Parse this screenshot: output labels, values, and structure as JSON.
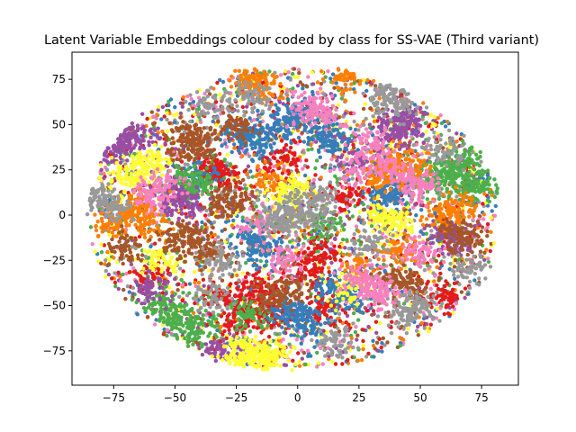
{
  "chart_data": {
    "type": "scatter",
    "title": "Latent Variable Embeddings colour coded by class for SS-VAE (Third variant)",
    "xlabel": "",
    "ylabel": "",
    "xlim": [
      -92,
      90
    ],
    "ylim": [
      -94,
      90
    ],
    "x_ticks": [
      -75,
      -50,
      -25,
      0,
      25,
      50,
      75
    ],
    "y_ticks": [
      -75,
      -50,
      -25,
      0,
      25,
      50,
      75
    ],
    "x_tick_labels": [
      "−75",
      "−50",
      "−25",
      "0",
      "25",
      "50",
      "75"
    ],
    "y_tick_labels": [
      "−75",
      "−50",
      "−25",
      "0",
      "25",
      "50",
      "75"
    ],
    "grid": false,
    "legend": "none",
    "marker": "filled circle",
    "class_colors": [
      "#e41a1c",
      "#377eb8",
      "#4daf4a",
      "#984ea3",
      "#ff7f00",
      "#ffff33",
      "#a65628",
      "#f781bf",
      "#999999"
    ],
    "cloud_extent": {
      "x": [
        -85,
        82
      ],
      "y": [
        -85,
        81
      ]
    },
    "series": [
      {
        "color": "#e41a1c",
        "points": [
          [
            -20,
            -50
          ],
          [
            -15,
            -40
          ],
          [
            -10,
            -55
          ],
          [
            -30,
            -45
          ],
          [
            -5,
            30
          ],
          [
            -30,
            20
          ],
          [
            -35,
            25
          ],
          [
            5,
            -30
          ],
          [
            10,
            -50
          ],
          [
            -25,
            -60
          ],
          [
            60,
            -45
          ],
          [
            -60,
            -35
          ],
          [
            20,
            10
          ],
          [
            10,
            -20
          ]
        ]
      },
      {
        "color": "#377eb8",
        "points": [
          [
            -25,
            45
          ],
          [
            -15,
            45
          ],
          [
            -20,
            40
          ],
          [
            -5,
            50
          ],
          [
            0,
            55
          ],
          [
            10,
            45
          ],
          [
            15,
            42
          ],
          [
            0,
            -55
          ],
          [
            5,
            -60
          ],
          [
            -5,
            -52
          ],
          [
            15,
            -40
          ],
          [
            20,
            -45
          ],
          [
            40,
            15
          ],
          [
            35,
            10
          ],
          [
            -20,
            -15
          ],
          [
            -15,
            -20
          ],
          [
            -40,
            20
          ]
        ]
      },
      {
        "color": "#4daf4a",
        "points": [
          [
            60,
            20
          ],
          [
            65,
            25
          ],
          [
            70,
            15
          ],
          [
            55,
            22
          ],
          [
            75,
            18
          ],
          [
            68,
            30
          ],
          [
            -50,
            -55
          ],
          [
            -45,
            -60
          ],
          [
            -40,
            -65
          ],
          [
            -55,
            -50
          ],
          [
            -40,
            15
          ],
          [
            -45,
            20
          ],
          [
            10,
            -5
          ],
          [
            -20,
            -55
          ]
        ]
      },
      {
        "color": "#984ea3",
        "points": [
          [
            -70,
            40
          ],
          [
            -65,
            45
          ],
          [
            -75,
            35
          ],
          [
            -45,
            5
          ],
          [
            -50,
            10
          ],
          [
            40,
            50
          ],
          [
            45,
            55
          ],
          [
            40,
            45
          ],
          [
            60,
            -10
          ],
          [
            65,
            -15
          ],
          [
            -30,
            -75
          ],
          [
            25,
            30
          ],
          [
            -60,
            -40
          ]
        ]
      },
      {
        "color": "#ff7f00",
        "points": [
          [
            -70,
            0
          ],
          [
            -65,
            5
          ],
          [
            -75,
            -5
          ],
          [
            -60,
            -5
          ],
          [
            20,
            75
          ],
          [
            -20,
            75
          ],
          [
            -15,
            70
          ],
          [
            40,
            30
          ],
          [
            45,
            25
          ],
          [
            35,
            20
          ],
          [
            60,
            0
          ],
          [
            65,
            5
          ],
          [
            -10,
            20
          ],
          [
            25,
            -30
          ],
          [
            40,
            -20
          ]
        ]
      },
      {
        "color": "#ffff33",
        "points": [
          [
            -20,
            -75
          ],
          [
            -15,
            -80
          ],
          [
            -10,
            -78
          ],
          [
            -25,
            -78
          ],
          [
            -65,
            25
          ],
          [
            -70,
            20
          ],
          [
            -60,
            30
          ],
          [
            -5,
            10
          ],
          [
            0,
            15
          ],
          [
            35,
            0
          ],
          [
            40,
            -5
          ],
          [
            20,
            -40
          ],
          [
            -55,
            -25
          ]
        ]
      },
      {
        "color": "#a65628",
        "points": [
          [
            -50,
            -15
          ],
          [
            -40,
            -20
          ],
          [
            -45,
            -10
          ],
          [
            -45,
            45
          ],
          [
            -40,
            40
          ],
          [
            -45,
            35
          ],
          [
            -25,
            10
          ],
          [
            -30,
            5
          ],
          [
            -10,
            -45
          ],
          [
            -5,
            -40
          ],
          [
            40,
            -35
          ],
          [
            45,
            -40
          ],
          [
            65,
            -10
          ],
          [
            70,
            -15
          ],
          [
            -70,
            -20
          ],
          [
            -25,
            48
          ]
        ]
      },
      {
        "color": "#f781bf",
        "points": [
          [
            30,
            40
          ],
          [
            35,
            30
          ],
          [
            25,
            25
          ],
          [
            25,
            -35
          ],
          [
            30,
            -40
          ],
          [
            35,
            -45
          ],
          [
            5,
            60
          ],
          [
            10,
            55
          ],
          [
            -15,
            -5
          ],
          [
            45,
            20
          ],
          [
            50,
            15
          ],
          [
            -55,
            15
          ],
          [
            -60,
            10
          ],
          [
            50,
            -20
          ],
          [
            -5,
            -25
          ]
        ]
      },
      {
        "color": "#999999",
        "points": [
          [
            0,
            5
          ],
          [
            5,
            0
          ],
          [
            -5,
            -5
          ],
          [
            10,
            10
          ],
          [
            -10,
            0
          ],
          [
            35,
            65
          ],
          [
            40,
            60
          ],
          [
            -20,
            65
          ],
          [
            45,
            -55
          ],
          [
            50,
            -50
          ],
          [
            -80,
            10
          ],
          [
            -75,
            5
          ],
          [
            30,
            -15
          ],
          [
            -30,
            -25
          ],
          [
            -35,
            -45
          ],
          [
            60,
            35
          ],
          [
            70,
            -30
          ],
          [
            -35,
            60
          ],
          [
            15,
            -70
          ]
        ]
      }
    ]
  }
}
